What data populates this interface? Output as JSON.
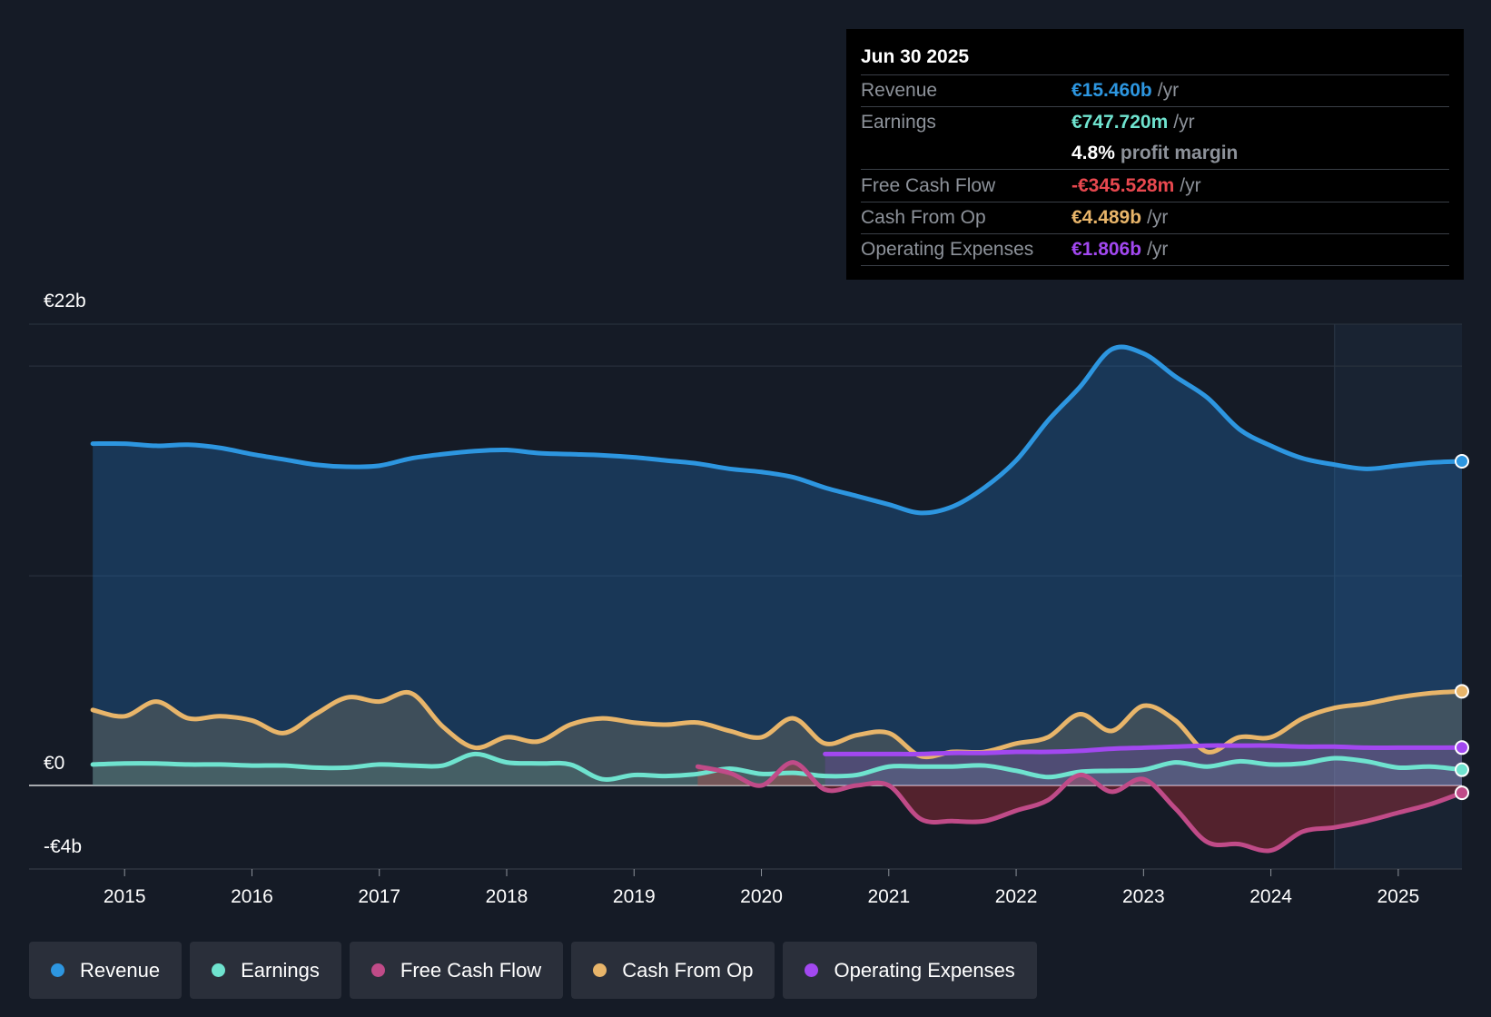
{
  "tooltip": {
    "date": "Jun 30 2025",
    "rows": [
      {
        "label": "Revenue",
        "value": "€15.460b",
        "unit": "/yr",
        "color": "#2d96e0"
      },
      {
        "label": "Earnings",
        "value": "€747.720m",
        "unit": "/yr",
        "color": "#6fe3cf"
      },
      {
        "label": "",
        "value": "4.8%",
        "unit": "profit margin",
        "color": "#ffffff"
      },
      {
        "label": "Free Cash Flow",
        "value": "-€345.528m",
        "unit": "/yr",
        "color": "#e8484f"
      },
      {
        "label": "Cash From Op",
        "value": "€4.489b",
        "unit": "/yr",
        "color": "#e8b56a"
      },
      {
        "label": "Operating Expenses",
        "value": "€1.806b",
        "unit": "/yr",
        "color": "#a248f0"
      }
    ]
  },
  "legend": [
    {
      "label": "Revenue",
      "color": "#2d96e0"
    },
    {
      "label": "Earnings",
      "color": "#6fe3cf"
    },
    {
      "label": "Free Cash Flow",
      "color": "#c04b88"
    },
    {
      "label": "Cash From Op",
      "color": "#e8b56a"
    },
    {
      "label": "Operating Expenses",
      "color": "#a248f0"
    }
  ],
  "chart_data": {
    "type": "area",
    "title": "",
    "xlabel": "",
    "ylabel": "",
    "ylim": [
      -4,
      22
    ],
    "xlim": [
      2014.25,
      2025.5
    ],
    "y_axis_labels": [
      "€22b",
      "€0",
      "-€4b"
    ],
    "y_axis_label_values": [
      22,
      0,
      -4
    ],
    "x_ticks": [
      "2015",
      "2016",
      "2017",
      "2018",
      "2019",
      "2020",
      "2021",
      "2022",
      "2023",
      "2024",
      "2025"
    ],
    "x_tick_values": [
      2015,
      2016,
      2017,
      2018,
      2019,
      2020,
      2021,
      2022,
      2023,
      2024,
      2025
    ],
    "forecast_start": 2024.5,
    "series": [
      {
        "name": "Revenue",
        "color": "#2d96e0",
        "x": [
          2014.75,
          2015.0,
          2015.25,
          2015.5,
          2015.75,
          2016.0,
          2016.25,
          2016.5,
          2016.75,
          2017.0,
          2017.25,
          2017.5,
          2017.75,
          2018.0,
          2018.25,
          2018.5,
          2018.75,
          2019.0,
          2019.25,
          2019.5,
          2019.75,
          2020.0,
          2020.25,
          2020.5,
          2020.75,
          2021.0,
          2021.25,
          2021.5,
          2021.75,
          2022.0,
          2022.25,
          2022.5,
          2022.75,
          2023.0,
          2023.25,
          2023.5,
          2023.75,
          2024.0,
          2024.25,
          2024.5,
          2024.75,
          2025.0,
          2025.25,
          2025.5
        ],
        "values": [
          16.3,
          16.3,
          16.2,
          16.25,
          16.1,
          15.8,
          15.55,
          15.3,
          15.2,
          15.25,
          15.6,
          15.8,
          15.95,
          16.0,
          15.85,
          15.8,
          15.75,
          15.65,
          15.5,
          15.35,
          15.1,
          14.95,
          14.7,
          14.2,
          13.8,
          13.4,
          13.0,
          13.3,
          14.2,
          15.5,
          17.4,
          19.0,
          20.8,
          20.6,
          19.5,
          18.5,
          17.0,
          16.2,
          15.6,
          15.3,
          15.1,
          15.25,
          15.4,
          15.46
        ]
      },
      {
        "name": "Earnings",
        "color": "#6fe3cf",
        "x": [
          2014.75,
          2015.0,
          2015.25,
          2015.5,
          2015.75,
          2016.0,
          2016.25,
          2016.5,
          2016.75,
          2017.0,
          2017.25,
          2017.5,
          2017.75,
          2018.0,
          2018.25,
          2018.5,
          2018.75,
          2019.0,
          2019.25,
          2019.5,
          2019.75,
          2020.0,
          2020.25,
          2020.5,
          2020.75,
          2021.0,
          2021.25,
          2021.5,
          2021.75,
          2022.0,
          2022.25,
          2022.5,
          2022.75,
          2023.0,
          2023.25,
          2023.5,
          2023.75,
          2024.0,
          2024.25,
          2024.5,
          2024.75,
          2025.0,
          2025.25,
          2025.5
        ],
        "values": [
          1.0,
          1.05,
          1.05,
          1.0,
          1.0,
          0.95,
          0.95,
          0.85,
          0.85,
          1.0,
          0.95,
          0.95,
          1.5,
          1.1,
          1.05,
          1.0,
          0.3,
          0.5,
          0.45,
          0.55,
          0.8,
          0.55,
          0.6,
          0.45,
          0.5,
          0.9,
          0.9,
          0.9,
          0.95,
          0.7,
          0.4,
          0.65,
          0.7,
          0.75,
          1.1,
          0.9,
          1.15,
          1.0,
          1.05,
          1.3,
          1.15,
          0.85,
          0.9,
          0.75
        ]
      },
      {
        "name": "Free Cash Flow",
        "color": "#c04b88",
        "x": [
          2019.5,
          2019.75,
          2020.0,
          2020.25,
          2020.5,
          2020.75,
          2021.0,
          2021.25,
          2021.5,
          2021.75,
          2022.0,
          2022.25,
          2022.5,
          2022.75,
          2023.0,
          2023.25,
          2023.5,
          2023.75,
          2024.0,
          2024.25,
          2024.5,
          2024.75,
          2025.0,
          2025.25,
          2025.5
        ],
        "values": [
          0.9,
          0.6,
          0.0,
          1.1,
          -0.2,
          0.0,
          0.0,
          -1.6,
          -1.7,
          -1.7,
          -1.2,
          -0.7,
          0.5,
          -0.3,
          0.3,
          -1.1,
          -2.7,
          -2.8,
          -3.1,
          -2.2,
          -2.0,
          -1.7,
          -1.3,
          -0.9,
          -0.35
        ]
      },
      {
        "name": "Cash From Op",
        "color": "#e8b56a",
        "x": [
          2014.75,
          2015.0,
          2015.25,
          2015.5,
          2015.75,
          2016.0,
          2016.25,
          2016.5,
          2016.75,
          2017.0,
          2017.25,
          2017.5,
          2017.75,
          2018.0,
          2018.25,
          2018.5,
          2018.75,
          2019.0,
          2019.25,
          2019.5,
          2019.75,
          2020.0,
          2020.25,
          2020.5,
          2020.75,
          2021.0,
          2021.25,
          2021.5,
          2021.75,
          2022.0,
          2022.25,
          2022.5,
          2022.75,
          2023.0,
          2023.25,
          2023.5,
          2023.75,
          2024.0,
          2024.25,
          2024.5,
          2024.75,
          2025.0,
          2025.25,
          2025.5
        ],
        "values": [
          3.6,
          3.3,
          4.0,
          3.2,
          3.3,
          3.1,
          2.5,
          3.4,
          4.2,
          4.0,
          4.4,
          2.8,
          1.8,
          2.3,
          2.1,
          2.9,
          3.2,
          3.0,
          2.9,
          3.0,
          2.6,
          2.3,
          3.2,
          2.0,
          2.4,
          2.5,
          1.4,
          1.6,
          1.6,
          2.0,
          2.3,
          3.4,
          2.6,
          3.8,
          3.1,
          1.6,
          2.3,
          2.3,
          3.2,
          3.7,
          3.9,
          4.2,
          4.4,
          4.49
        ]
      },
      {
        "name": "Operating Expenses",
        "color": "#a248f0",
        "x": [
          2020.5,
          2020.75,
          2021.0,
          2021.25,
          2021.5,
          2021.75,
          2022.0,
          2022.25,
          2022.5,
          2022.75,
          2023.0,
          2023.25,
          2023.5,
          2023.75,
          2024.0,
          2024.25,
          2024.5,
          2024.75,
          2025.0,
          2025.25,
          2025.5
        ],
        "values": [
          1.5,
          1.5,
          1.5,
          1.5,
          1.55,
          1.55,
          1.6,
          1.6,
          1.65,
          1.75,
          1.8,
          1.85,
          1.9,
          1.9,
          1.9,
          1.85,
          1.85,
          1.8,
          1.8,
          1.8,
          1.806
        ]
      }
    ]
  }
}
